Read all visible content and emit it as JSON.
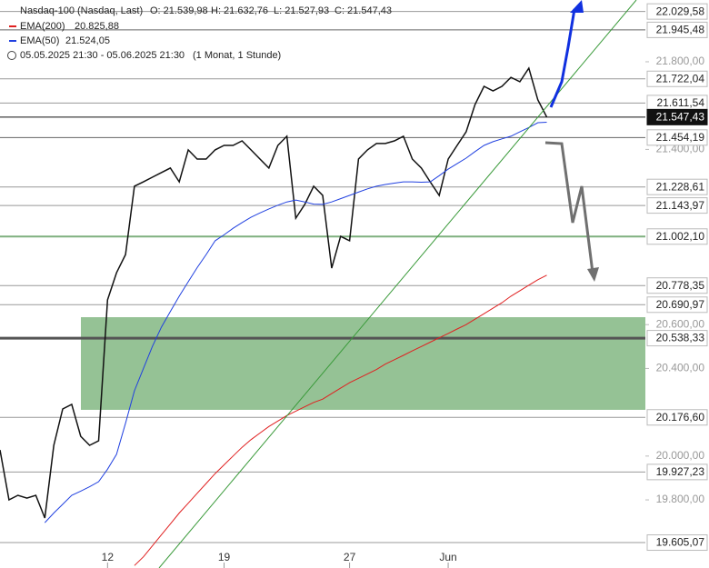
{
  "chart_data": {
    "type": "line",
    "header": {
      "title": "Nasdaq-100 (Nasdaq, Last)",
      "ohlc": [
        "O: 21.539,98",
        "H: 21.632,76",
        "L: 21.527,93",
        "C: 21.547,43"
      ],
      "period": "05.05.2025 21:30 - 05.06.2025 21:30",
      "interval": "(1 Monat, 1 Stunde)"
    },
    "categories": [
      null,
      null,
      null,
      null,
      null,
      null,
      null,
      null,
      null,
      null,
      null,
      null,
      "12",
      null,
      null,
      null,
      null,
      null,
      null,
      null,
      null,
      null,
      null,
      null,
      null,
      "19",
      null,
      null,
      null,
      null,
      null,
      null,
      null,
      null,
      null,
      null,
      null,
      null,
      null,
      "27",
      null,
      null,
      null,
      null,
      null,
      null,
      null,
      null,
      null,
      null,
      "Jun",
      null,
      null,
      null,
      null,
      null,
      null,
      null,
      null,
      null,
      null,
      null,
      null,
      null,
      null,
      null,
      null,
      null,
      null,
      null,
      null,
      null
    ],
    "series": [
      {
        "name": "Nasdaq-100 (Nasdaq, Last)",
        "color": "#111111",
        "values": [
          20028,
          19800,
          19821,
          19808,
          19821,
          19717,
          20049,
          20215,
          20236,
          20090,
          20049,
          20070,
          20713,
          20837,
          20920,
          21232,
          21252,
          21273,
          21294,
          21315,
          21252,
          21398,
          21356,
          21356,
          21398,
          21418,
          21418,
          21439,
          21398,
          21356,
          21315,
          21418,
          21460,
          21086,
          21149,
          21232,
          21190,
          20858,
          21003,
          20983,
          21356,
          21398,
          21427,
          21427,
          21439,
          21460,
          21356,
          21315,
          21252,
          21190,
          21356,
          21418,
          21480,
          21605,
          21688,
          21667,
          21688,
          21729,
          21709,
          21771,
          21626,
          21547.43,
          null,
          null,
          null,
          null,
          null,
          null,
          null,
          null,
          null,
          null
        ]
      },
      {
        "name": "EMA(200)",
        "color": "#e02020",
        "value_label": "20.825,88",
        "values": [
          null,
          null,
          null,
          null,
          null,
          null,
          null,
          null,
          null,
          null,
          null,
          null,
          null,
          null,
          null,
          19500,
          19540,
          19590,
          19640,
          19690,
          19740,
          19785,
          19830,
          19875,
          19920,
          19960,
          20000,
          20040,
          20075,
          20105,
          20135,
          20160,
          20185,
          20205,
          20225,
          20245,
          20260,
          20285,
          20310,
          20335,
          20355,
          20375,
          20395,
          20420,
          20440,
          20460,
          20480,
          20500,
          20520,
          20540,
          20560,
          20580,
          20600,
          20625,
          20650,
          20675,
          20700,
          20730,
          20755,
          20780,
          20805,
          20825.88,
          null,
          null,
          null,
          null,
          null,
          null,
          null,
          null,
          null,
          null
        ]
      },
      {
        "name": "EMA(50)",
        "color": "#2040e0",
        "value_label": "21.524,05",
        "values": [
          null,
          null,
          null,
          null,
          null,
          19696,
          19740,
          19780,
          19821,
          19840,
          19860,
          19883,
          19940,
          20008,
          20150,
          20298,
          20400,
          20500,
          20588,
          20660,
          20730,
          20796,
          20860,
          20920,
          20983,
          21010,
          21040,
          21066,
          21090,
          21110,
          21128,
          21145,
          21160,
          21169,
          21160,
          21150,
          21149,
          21160,
          21175,
          21190,
          21205,
          21220,
          21232,
          21240,
          21246,
          21252,
          21252,
          21250,
          21252,
          21280,
          21310,
          21335,
          21360,
          21390,
          21418,
          21435,
          21448,
          21460,
          21480,
          21500,
          21522,
          21524.05,
          null,
          null,
          null,
          null,
          null,
          null,
          null,
          null,
          null,
          null
        ]
      }
    ],
    "ylim": [
      19489,
      22082
    ],
    "yticks": [
      {
        "value": 19800,
        "label": "19.800,00"
      },
      {
        "value": 20000,
        "label": "20.000,00"
      },
      {
        "value": 20400,
        "label": "20.400,00"
      },
      {
        "value": 20600,
        "label": "20.600,00"
      },
      {
        "value": 21400,
        "label": "21.400,00"
      },
      {
        "value": 21800,
        "label": "21.800,00"
      }
    ],
    "zone": {
      "from": 20211,
      "to": 20634,
      "color": "#8fbf8f"
    },
    "levels": [
      {
        "value": 22029.58,
        "label": "22.029,58",
        "color": "#999999"
      },
      {
        "value": 21945.48,
        "label": "21.945,48",
        "color": "#666666"
      },
      {
        "value": 21722.04,
        "label": "21.722,04",
        "color": "#999999"
      },
      {
        "value": 21611.54,
        "label": "21.611,54",
        "color": "#999999"
      },
      {
        "value": 21547.43,
        "label": "21.547,43",
        "color": "#111111",
        "current": true
      },
      {
        "value": 21454.19,
        "label": "21.454,19",
        "color": "#666666"
      },
      {
        "value": 21228.61,
        "label": "21.228,61",
        "color": "#999999"
      },
      {
        "value": 21143.97,
        "label": "21.143,97",
        "color": "#999999"
      },
      {
        "value": 21002.1,
        "label": "21.002,10",
        "color": "#7fb07f"
      },
      {
        "value": 20778.35,
        "label": "20.778,35",
        "color": "#999999"
      },
      {
        "value": 20690.97,
        "label": "20.690,97",
        "color": "#999999"
      },
      {
        "value": 20538.33,
        "label": "20.538,33",
        "color": "#555555",
        "thick": true
      },
      {
        "value": 20176.6,
        "label": "20.176,60",
        "color": "#999999"
      },
      {
        "value": 19927.23,
        "label": "19.927,23",
        "color": "#999999"
      },
      {
        "value": 19605.07,
        "label": "19.605,07",
        "color": "#999999"
      }
    ]
  }
}
